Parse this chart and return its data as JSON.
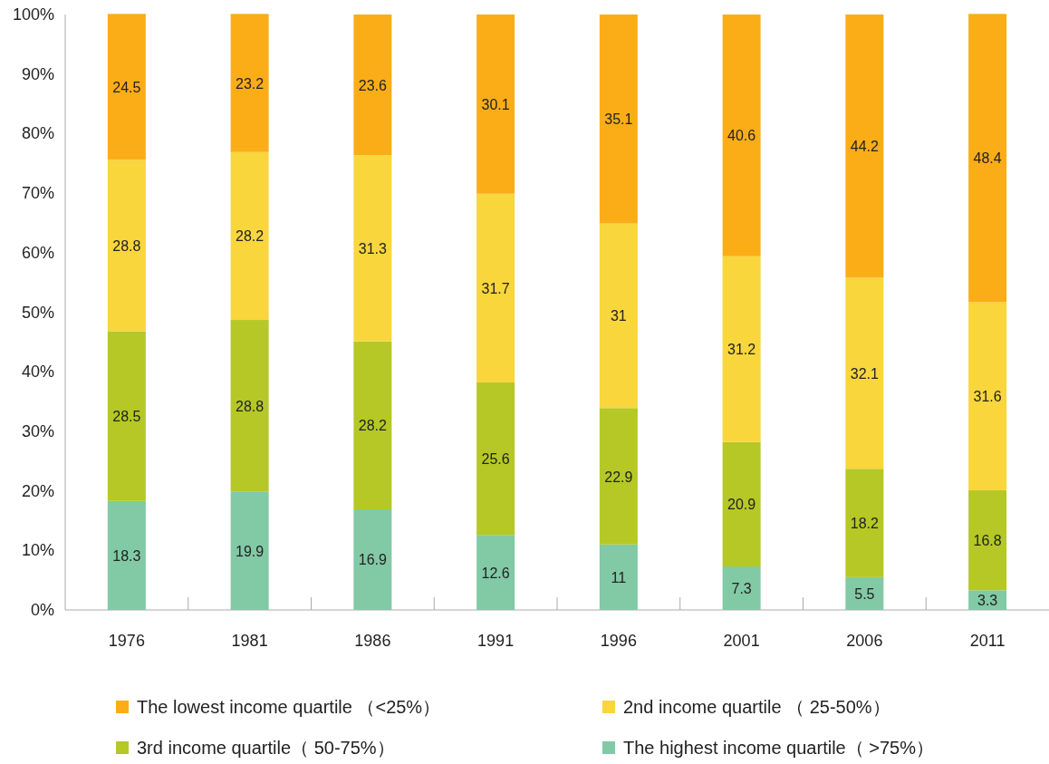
{
  "chart_data": {
    "type": "bar",
    "stacked": true,
    "categories": [
      "1976",
      "1981",
      "1986",
      "1991",
      "1996",
      "2001",
      "2006",
      "2011"
    ],
    "series": [
      {
        "name": "The highest income quartile（ >75%）",
        "color": "#82c9a5",
        "values": [
          18.3,
          19.9,
          16.9,
          12.6,
          11,
          7.3,
          5.5,
          3.3
        ]
      },
      {
        "name": "3rd income quartile（ 50-75%）",
        "color": "#b5c826",
        "values": [
          28.5,
          28.8,
          28.2,
          25.6,
          22.9,
          20.9,
          18.2,
          16.8
        ]
      },
      {
        "name": "2nd income quartile （ 25-50%）",
        "color": "#f8d63c",
        "values": [
          28.8,
          28.2,
          31.3,
          31.7,
          31,
          31.2,
          32.1,
          31.6
        ]
      },
      {
        "name": "The lowest income quartile （<25%）",
        "color": "#fbad18",
        "values": [
          24.5,
          23.2,
          23.6,
          30.1,
          35.1,
          40.6,
          44.2,
          48.4
        ]
      }
    ],
    "ylim": [
      0,
      100
    ],
    "yticks": [
      {
        "value": 0,
        "label": "0%"
      },
      {
        "value": 10,
        "label": "10%"
      },
      {
        "value": 20,
        "label": "20%"
      },
      {
        "value": 30,
        "label": "30%"
      },
      {
        "value": 40,
        "label": "40%"
      },
      {
        "value": 50,
        "label": "50%"
      },
      {
        "value": 60,
        "label": "60%"
      },
      {
        "value": 70,
        "label": "70%"
      },
      {
        "value": 80,
        "label": "80%"
      },
      {
        "value": 90,
        "label": "90%"
      },
      {
        "value": 100,
        "label": "100%"
      }
    ],
    "data_labels": true,
    "legend": "bottom"
  }
}
